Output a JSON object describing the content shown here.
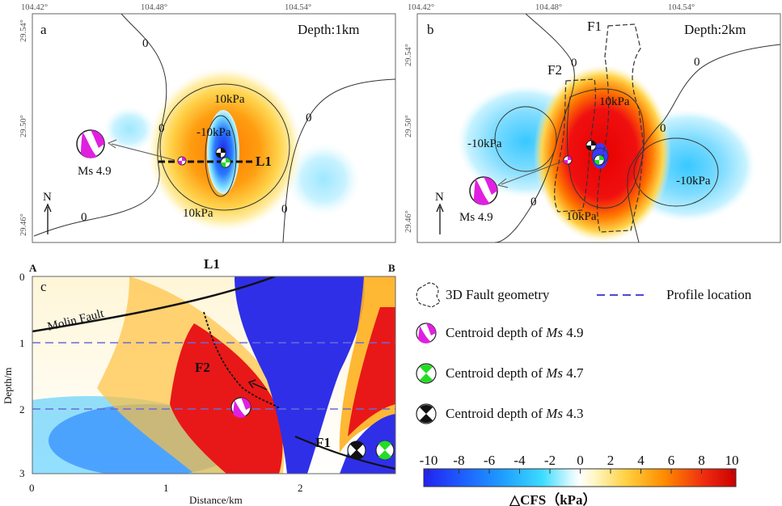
{
  "chart_data": [
    {
      "type": "heatmap",
      "panel": "a",
      "depth_label": "Depth:1km",
      "x_ticks": [
        "104.42°",
        "104.48°",
        "104.54°"
      ],
      "y_ticks": [
        "29.54°",
        "29.50°",
        "29.46°"
      ],
      "contour_labels": [
        "0",
        "0",
        "0",
        "0",
        "0",
        "10kPa",
        "-10kPa",
        "10kPa"
      ],
      "profile_label": "L1",
      "magnitude_label": "Ms 4.9",
      "north_label": "N"
    },
    {
      "type": "heatmap",
      "panel": "b",
      "depth_label": "Depth:2km",
      "x_ticks": [
        "104.42°",
        "104.48°",
        "104.54°"
      ],
      "y_ticks": [
        "29.54°",
        "29.50°",
        "29.46°"
      ],
      "fault_labels": [
        "F1",
        "F2"
      ],
      "contour_labels": [
        "0",
        "0",
        "0",
        "0",
        "10kPa",
        "-10kPa",
        "-10kPa",
        "10kPa"
      ],
      "magnitude_label": "Ms 4.9",
      "north_label": "N"
    },
    {
      "type": "heatmap",
      "panel": "c",
      "profile": "L1",
      "end_labels": [
        "A",
        "B"
      ],
      "xlabel": "Distance/km",
      "ylabel": "Depth/m",
      "x_ticks": [
        0,
        1,
        2
      ],
      "y_ticks": [
        0,
        1,
        2,
        3
      ],
      "xlim": [
        0,
        2.7
      ],
      "ylim": [
        0,
        3
      ],
      "fault_labels": [
        "Molin Fault",
        "F2",
        "F1"
      ],
      "dashed_profile_depths": [
        1,
        2
      ]
    }
  ],
  "legend": {
    "fault_geometry": "3D Fault geometry",
    "profile_location": "Profile location",
    "items": [
      {
        "label": "Centroid depth of ",
        "mag": "Ms",
        "value": " 4.9",
        "color": "#e020e0"
      },
      {
        "label": "Centroid depth of ",
        "mag": "Ms",
        "value": " 4.7",
        "color": "#22dd22"
      },
      {
        "label": "Centroid depth of ",
        "mag": "Ms",
        "value": " 4.3",
        "color": "#111111"
      }
    ]
  },
  "colorbar": {
    "ticks": [
      "-10",
      "-8",
      "-6",
      "-4",
      "-2",
      "0",
      "2",
      "4",
      "6",
      "8",
      "10"
    ],
    "title": "△CFS（kPa）",
    "colors": [
      "#2222ee",
      "#1e88ff",
      "#27d8ff",
      "#e8fbff",
      "#ffffff",
      "#fff7c0",
      "#ffd040",
      "#ff8c00",
      "#e81818",
      "#cc0000"
    ]
  }
}
